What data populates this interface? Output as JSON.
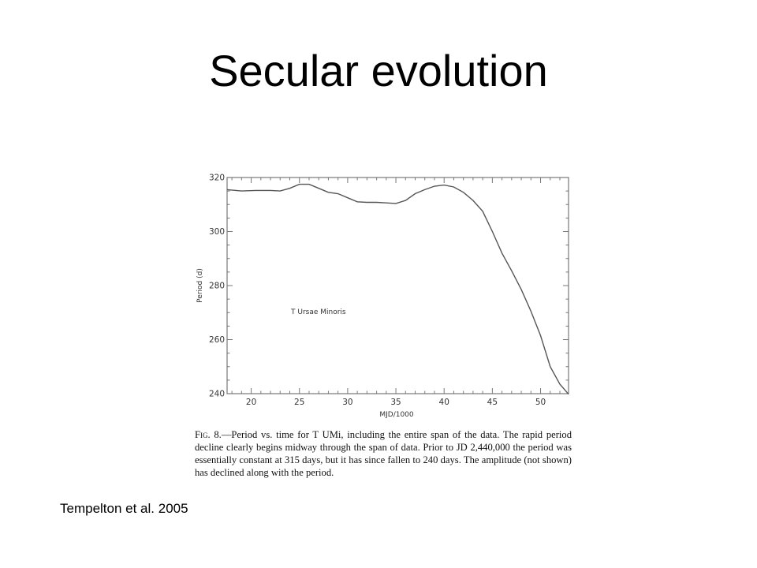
{
  "slide": {
    "title": "Secular evolution",
    "citation": "Tempelton et al. 2005"
  },
  "figure": {
    "caption_lead": "Fig. 8.",
    "caption_text": "—Period vs. time for T UMi, including the entire span of the data. The rapid period decline clearly begins midway through the span of data. Prior to JD 2,440,000 the period was essentially constant at 315 days, but it has since fallen to 240 days. The amplitude (not shown) has declined along with the period."
  },
  "chart_data": {
    "type": "line",
    "title": "",
    "xlabel": "MJD/1000",
    "ylabel": "Period (d)",
    "annotation": "T Ursae Minoris",
    "xlim": [
      17.5,
      52.9
    ],
    "ylim": [
      240,
      320
    ],
    "xticks": [
      20,
      25,
      30,
      35,
      40,
      45,
      50
    ],
    "yticks": [
      240,
      260,
      280,
      300,
      320
    ],
    "grid": false,
    "series": [
      {
        "x": [
          17.5,
          19.0,
          20.5,
          22.0,
          23.0,
          24.0,
          25.0,
          26.0,
          27.0,
          28.0,
          29.0,
          30.0,
          31.0,
          32.0,
          33.0,
          34.0,
          35.0,
          36.0,
          37.0,
          38.0,
          39.0,
          40.0,
          41.0,
          42.0,
          43.0,
          44.0,
          45.0,
          46.0,
          47.0,
          48.0,
          49.0,
          50.0,
          51.0,
          52.0,
          52.9
        ],
        "y": [
          315.5,
          315.0,
          315.2,
          315.2,
          315.0,
          316.0,
          317.5,
          317.5,
          316.0,
          314.5,
          314.0,
          312.5,
          311.0,
          310.8,
          310.8,
          310.6,
          310.4,
          311.5,
          314.0,
          315.5,
          316.8,
          317.2,
          316.5,
          314.5,
          311.5,
          307.5,
          300.0,
          292.0,
          285.5,
          278.5,
          270.5,
          261.5,
          250.0,
          243.5,
          239.8
        ]
      }
    ],
    "colors": {
      "axes": "#777777",
      "line": "#555555",
      "text": "#333333"
    }
  }
}
